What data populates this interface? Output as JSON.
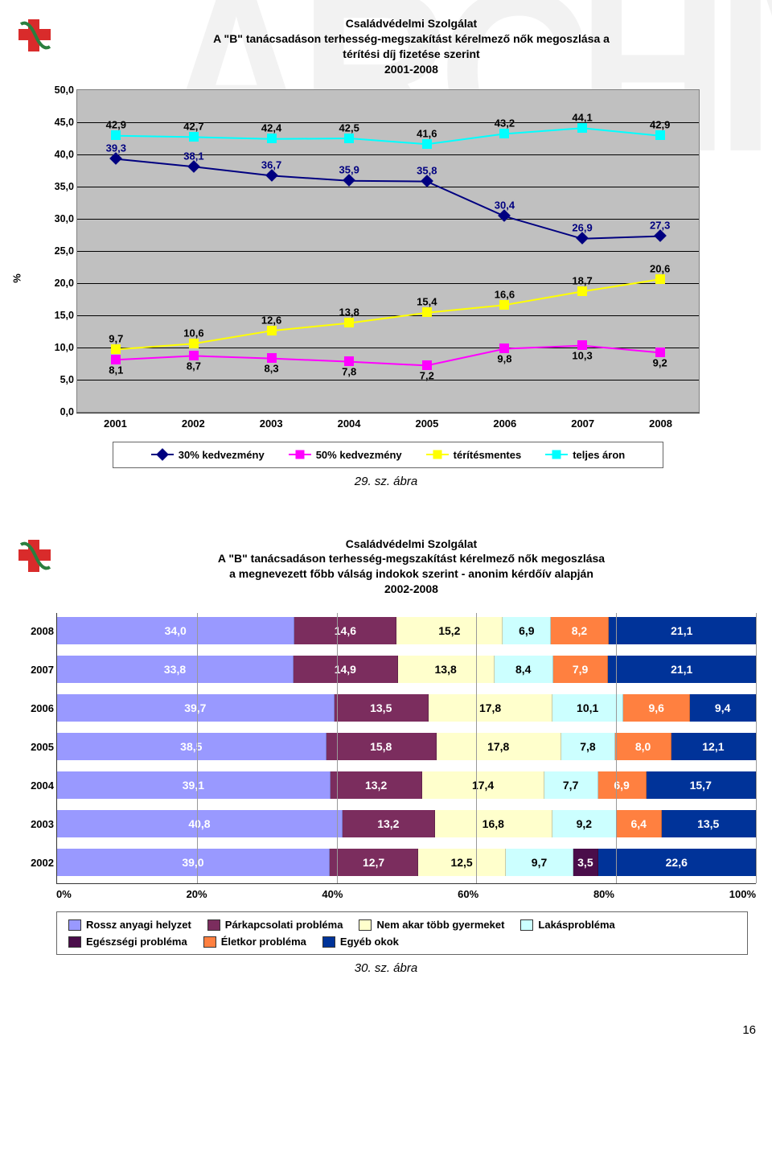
{
  "watermark": "ARCHÍVUM",
  "page_number": "16",
  "chart1": {
    "type": "line",
    "title_line1": "Családvédelmi Szolgálat",
    "title_line2": "A \"B\" tanácsadáson terhesség-megszakítást kérelmező nők megoszlása a",
    "title_line3": "térítési díj fizetése szerint",
    "title_line4": "2001-2008",
    "caption": "29. sz. ábra",
    "y_label": "%",
    "ylim": [
      0,
      50
    ],
    "ytick_step": 5,
    "categories": [
      "2001",
      "2002",
      "2003",
      "2004",
      "2005",
      "2006",
      "2007",
      "2008"
    ],
    "background_color": "#c0c0c0",
    "grid_color": "#000000",
    "series": {
      "kedv30": {
        "label": "30% kedvezmény",
        "color": "#000080",
        "marker": "diamond",
        "values": [
          39.3,
          38.1,
          36.7,
          35.9,
          35.8,
          30.4,
          26.9,
          27.3
        ],
        "labels": [
          "39,3",
          "38,1",
          "36,7",
          "35,9",
          "35,8",
          "30,4",
          "26,9",
          "27,3"
        ]
      },
      "kedv50": {
        "label": "50% kedvezmény",
        "color": "#ff00ff",
        "marker": "square",
        "values": [
          8.1,
          8.7,
          8.3,
          7.8,
          7.2,
          9.8,
          10.3,
          9.2
        ],
        "labels": [
          "8,1",
          "8,7",
          "8,3",
          "7,8",
          "7,2",
          "9,8",
          "10,3",
          "9,2"
        ]
      },
      "terit": {
        "label": "térítésmentes",
        "color": "#ffff00",
        "marker": "square",
        "values": [
          9.7,
          10.6,
          12.6,
          13.8,
          15.4,
          16.6,
          18.7,
          20.6
        ],
        "labels": [
          "9,7",
          "10,6",
          "12,6",
          "13,8",
          "15,4",
          "16,6",
          "18,7",
          "20,6"
        ]
      },
      "teljes": {
        "label": "teljes áron",
        "color": "#00ffff",
        "marker": "square",
        "values": [
          42.9,
          42.7,
          42.4,
          42.5,
          41.6,
          43.2,
          44.1,
          42.9
        ],
        "labels": [
          "42,9",
          "42,7",
          "42,4",
          "42,5",
          "41,6",
          "43,2",
          "44,1",
          "42,9"
        ]
      }
    },
    "legend_order": [
      "kedv30",
      "kedv50",
      "terit",
      "teljes"
    ]
  },
  "chart2": {
    "type": "stacked-bar-horizontal",
    "title_line1": "Családvédelmi Szolgálat",
    "title_line2": "A \"B\" tanácsadáson terhesség-megszakítást kérelmező nők megoszlása",
    "title_line3": "a megnevezett főbb válság indokok szerint - anonim kérdőív alapján",
    "title_line4": "2002-2008",
    "caption": "30. sz. ábra",
    "xticks": [
      "0%",
      "20%",
      "40%",
      "60%",
      "80%",
      "100%"
    ],
    "series": [
      {
        "key": "rossz",
        "label": "Rossz anyagi helyzet",
        "color": "#9999ff",
        "text": "dark"
      },
      {
        "key": "parkap",
        "label": "Párkapcsolati probléma",
        "color": "#7b2d5e",
        "text": "dark"
      },
      {
        "key": "nemakar",
        "label": "Nem akar több gyermeket",
        "color": "#ffffcc",
        "text": "light"
      },
      {
        "key": "lakas",
        "label": "Lakásprobléma",
        "color": "#ccffff",
        "text": "light"
      },
      {
        "key": "egesz",
        "label": "Egészségi probléma",
        "color": "#4a0d4a",
        "text": "dark"
      },
      {
        "key": "eletkor",
        "label": "Életkor probléma",
        "color": "#ff8040",
        "text": "dark"
      },
      {
        "key": "egyeb",
        "label": "Egyéb okok",
        "color": "#003399",
        "text": "dark"
      }
    ],
    "rows": [
      {
        "year": "2008",
        "vals": [
          34.0,
          14.6,
          15.2,
          6.9,
          0,
          8.2,
          21.1
        ],
        "labels": [
          "34,0",
          "14,6",
          "15,2",
          "6,9",
          "",
          "8,2",
          "21,1"
        ]
      },
      {
        "year": "2007",
        "vals": [
          33.8,
          14.9,
          13.8,
          8.4,
          0,
          7.9,
          21.1
        ],
        "labels": [
          "33,8",
          "14,9",
          "13,8",
          "8,4",
          "",
          "7,9",
          "21,1"
        ]
      },
      {
        "year": "2006",
        "vals": [
          39.7,
          13.5,
          17.8,
          10.1,
          0,
          9.6,
          9.4
        ],
        "labels": [
          "39,7",
          "13,5",
          "17,8",
          "10,1",
          "",
          "9,6",
          "9,4"
        ]
      },
      {
        "year": "2005",
        "vals": [
          38.5,
          15.8,
          17.8,
          7.8,
          0,
          8.0,
          12.1
        ],
        "labels": [
          "38,5",
          "15,8",
          "17,8",
          "7,8",
          "",
          "8,0",
          "12,1"
        ]
      },
      {
        "year": "2004",
        "vals": [
          39.1,
          13.2,
          17.4,
          7.7,
          0,
          6.9,
          15.7
        ],
        "labels": [
          "39,1",
          "13,2",
          "17,4",
          "7,7",
          "",
          "6,9",
          "15,7"
        ]
      },
      {
        "year": "2003",
        "vals": [
          40.8,
          13.2,
          16.8,
          9.2,
          0,
          6.4,
          13.5
        ],
        "labels": [
          "40,8",
          "13,2",
          "16,8",
          "9,2",
          "",
          "6,4",
          "13,5"
        ]
      },
      {
        "year": "2002",
        "vals": [
          39.0,
          12.7,
          12.5,
          9.7,
          3.5,
          0,
          22.6
        ],
        "labels": [
          "39,0",
          "12,7",
          "12,5",
          "9,7",
          "3,5",
          "",
          "22,6"
        ]
      }
    ]
  }
}
